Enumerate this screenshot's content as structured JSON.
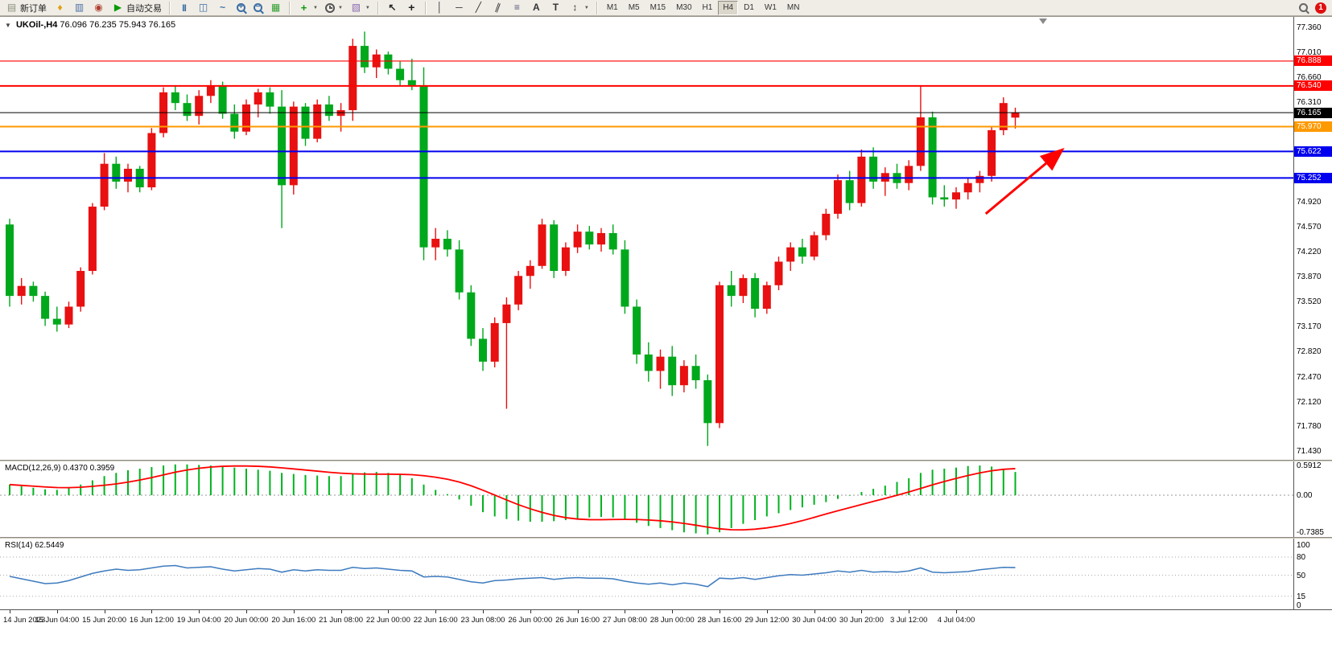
{
  "toolbar": {
    "new_order_label": "新订单",
    "autotrade_label": "自动交易",
    "timeframes": [
      "M1",
      "M5",
      "M15",
      "M30",
      "H1",
      "H4",
      "D1",
      "W1",
      "MN"
    ],
    "active_timeframe": "H4",
    "notification_count": "1"
  },
  "chart": {
    "symbol_period": "UKOil-,H4",
    "ohlc_line": "76.096 76.235 75.943 76.165"
  },
  "time_axis": [
    "14 Jun 2023",
    "15 Jun 04:00",
    "15 Jun 20:00",
    "16 Jun 12:00",
    "19 Jun 04:00",
    "20 Jun 00:00",
    "20 Jun 16:00",
    "21 Jun 08:00",
    "22 Jun 00:00",
    "22 Jun 16:00",
    "23 Jun 08:00",
    "26 Jun 00:00",
    "26 Jun 16:00",
    "27 Jun 08:00",
    "28 Jun 00:00",
    "28 Jun 16:00",
    "29 Jun 12:00",
    "30 Jun 04:00",
    "30 Jun 20:00",
    "3 Jul 12:00",
    "4 Jul 04:00"
  ],
  "chart_data": [
    {
      "type": "candlestick",
      "title": "UKOil-,H4",
      "ylim": [
        71.32,
        77.51
      ],
      "up_color": "#e81010",
      "down_color": "#00a81c",
      "y_ticks": [
        "77.360",
        "77.010",
        "76.660",
        "76.310",
        "74.920",
        "74.570",
        "74.220",
        "73.870",
        "73.520",
        "73.170",
        "72.820",
        "72.470",
        "72.120",
        "71.780",
        "71.430"
      ],
      "hlines": [
        {
          "price": 76.888,
          "label": "76.888",
          "color": "#ff0000",
          "width": 1.2
        },
        {
          "price": 76.54,
          "label": "76.540",
          "color": "#ff0000",
          "width": 2
        },
        {
          "price": 76.165,
          "label": "76.165",
          "color": "#000000",
          "width": 1
        },
        {
          "price": 75.97,
          "label": "75.970",
          "color": "#ff9900",
          "width": 2
        },
        {
          "price": 75.622,
          "label": "75.622",
          "color": "#0000ee",
          "width": 2
        },
        {
          "price": 75.252,
          "label": "75.252",
          "color": "#0000ee",
          "width": 2
        }
      ],
      "annotation_arrow": {
        "from_bar": 82.5,
        "from_price": 74.75,
        "to_bar": 89,
        "to_price": 75.65,
        "color": "#ff0000"
      },
      "ohlc": [
        [
          74.6,
          74.68,
          73.45,
          73.6
        ],
        [
          73.6,
          73.85,
          73.48,
          73.74
        ],
        [
          73.74,
          73.8,
          73.52,
          73.6
        ],
        [
          73.6,
          73.66,
          73.18,
          73.28
        ],
        [
          73.28,
          73.45,
          73.1,
          73.2
        ],
        [
          73.2,
          73.52,
          73.15,
          73.45
        ],
        [
          73.45,
          74.0,
          73.38,
          73.95
        ],
        [
          73.95,
          74.9,
          73.9,
          74.85
        ],
        [
          74.85,
          75.6,
          74.8,
          75.45
        ],
        [
          75.45,
          75.55,
          75.1,
          75.2
        ],
        [
          75.2,
          75.45,
          75.05,
          75.38
        ],
        [
          75.38,
          75.42,
          75.05,
          75.12
        ],
        [
          75.12,
          75.95,
          75.08,
          75.88
        ],
        [
          75.88,
          76.52,
          75.82,
          76.45
        ],
        [
          76.45,
          76.55,
          76.2,
          76.3
        ],
        [
          76.3,
          76.42,
          76.05,
          76.12
        ],
        [
          76.12,
          76.48,
          76.0,
          76.4
        ],
        [
          76.4,
          76.62,
          76.3,
          76.55
        ],
        [
          76.55,
          76.6,
          76.08,
          76.15
        ],
        [
          76.15,
          76.28,
          75.8,
          75.9
        ],
        [
          75.9,
          76.35,
          75.85,
          76.28
        ],
        [
          76.28,
          76.5,
          76.1,
          76.45
        ],
        [
          76.45,
          76.52,
          76.15,
          76.25
        ],
        [
          76.25,
          76.48,
          74.55,
          75.15
        ],
        [
          75.15,
          76.32,
          75.02,
          76.25
        ],
        [
          76.25,
          76.3,
          75.7,
          75.8
        ],
        [
          75.8,
          76.35,
          75.75,
          76.28
        ],
        [
          76.28,
          76.4,
          76.05,
          76.12
        ],
        [
          76.12,
          76.3,
          75.9,
          76.2
        ],
        [
          76.2,
          77.2,
          76.05,
          77.1
        ],
        [
          77.1,
          77.3,
          76.72,
          76.8
        ],
        [
          76.8,
          77.05,
          76.65,
          76.98
        ],
        [
          76.98,
          77.02,
          76.7,
          76.78
        ],
        [
          76.78,
          76.88,
          76.55,
          76.62
        ],
        [
          76.62,
          76.92,
          76.48,
          76.55
        ],
        [
          76.55,
          76.8,
          74.1,
          74.28
        ],
        [
          74.28,
          74.55,
          74.1,
          74.4
        ],
        [
          74.4,
          74.52,
          74.15,
          74.25
        ],
        [
          74.25,
          74.38,
          73.55,
          73.65
        ],
        [
          73.65,
          73.75,
          72.9,
          73.0
        ],
        [
          73.0,
          73.15,
          72.55,
          72.68
        ],
        [
          72.68,
          73.3,
          72.6,
          73.22
        ],
        [
          73.22,
          73.58,
          72.02,
          73.48
        ],
        [
          73.48,
          73.95,
          73.4,
          73.88
        ],
        [
          73.88,
          74.1,
          73.7,
          74.02
        ],
        [
          74.02,
          74.68,
          73.98,
          74.6
        ],
        [
          74.6,
          74.66,
          73.85,
          73.95
        ],
        [
          73.95,
          74.35,
          73.88,
          74.28
        ],
        [
          74.28,
          74.6,
          74.2,
          74.5
        ],
        [
          74.5,
          74.58,
          74.25,
          74.32
        ],
        [
          74.32,
          74.55,
          74.22,
          74.48
        ],
        [
          74.48,
          74.6,
          74.18,
          74.25
        ],
        [
          74.25,
          74.38,
          73.35,
          73.45
        ],
        [
          73.45,
          73.55,
          72.65,
          72.78
        ],
        [
          72.78,
          72.95,
          72.4,
          72.55
        ],
        [
          72.55,
          72.85,
          72.3,
          72.75
        ],
        [
          72.75,
          72.9,
          72.2,
          72.35
        ],
        [
          72.35,
          72.7,
          72.25,
          72.62
        ],
        [
          72.62,
          72.78,
          72.3,
          72.42
        ],
        [
          72.42,
          72.5,
          71.5,
          71.82
        ],
        [
          71.82,
          73.8,
          71.75,
          73.75
        ],
        [
          73.75,
          73.95,
          73.45,
          73.6
        ],
        [
          73.6,
          73.9,
          73.5,
          73.85
        ],
        [
          73.85,
          73.92,
          73.3,
          73.42
        ],
        [
          73.42,
          73.8,
          73.35,
          73.75
        ],
        [
          73.75,
          74.15,
          73.68,
          74.08
        ],
        [
          74.08,
          74.35,
          73.95,
          74.28
        ],
        [
          74.28,
          74.4,
          74.05,
          74.15
        ],
        [
          74.15,
          74.5,
          74.1,
          74.45
        ],
        [
          74.45,
          74.82,
          74.38,
          74.75
        ],
        [
          74.75,
          75.3,
          74.68,
          75.22
        ],
        [
          75.22,
          75.35,
          74.8,
          74.9
        ],
        [
          74.9,
          75.65,
          74.85,
          75.55
        ],
        [
          75.55,
          75.68,
          75.1,
          75.2
        ],
        [
          75.2,
          75.4,
          75.0,
          75.32
        ],
        [
          75.32,
          75.45,
          75.1,
          75.18
        ],
        [
          75.18,
          75.5,
          75.08,
          75.42
        ],
        [
          75.42,
          76.55,
          75.35,
          76.1
        ],
        [
          76.1,
          76.18,
          74.88,
          74.98
        ],
        [
          74.98,
          75.15,
          74.85,
          74.95
        ],
        [
          74.95,
          75.12,
          74.82,
          75.05
        ],
        [
          75.05,
          75.25,
          74.95,
          75.18
        ],
        [
          75.18,
          75.35,
          75.05,
          75.28
        ],
        [
          75.28,
          75.98,
          75.2,
          75.92
        ],
        [
          75.92,
          76.38,
          75.85,
          76.3
        ],
        [
          76.096,
          76.235,
          75.943,
          76.165
        ]
      ]
    },
    {
      "type": "bar",
      "title": "MACD(12,26,9)",
      "values_label": "0.4370 0.3959",
      "ylim": [
        -0.7385,
        0.5912
      ],
      "y_ticks": [
        "0.5912",
        "0.00",
        "-0.7385"
      ],
      "histogram_color": "#00b31e",
      "signal_color": "#ff0000",
      "values": [
        0.2,
        0.17,
        0.14,
        0.11,
        0.1,
        0.13,
        0.2,
        0.28,
        0.36,
        0.42,
        0.47,
        0.5,
        0.53,
        0.56,
        0.58,
        0.58,
        0.57,
        0.56,
        0.55,
        0.52,
        0.5,
        0.48,
        0.46,
        0.42,
        0.4,
        0.38,
        0.37,
        0.36,
        0.36,
        0.4,
        0.43,
        0.44,
        0.42,
        0.38,
        0.32,
        0.2,
        0.1,
        0.02,
        -0.08,
        -0.2,
        -0.32,
        -0.4,
        -0.45,
        -0.48,
        -0.5,
        -0.5,
        -0.49,
        -0.47,
        -0.44,
        -0.42,
        -0.41,
        -0.42,
        -0.46,
        -0.52,
        -0.58,
        -0.62,
        -0.66,
        -0.7,
        -0.72,
        -0.74,
        -0.7,
        -0.62,
        -0.54,
        -0.47,
        -0.4,
        -0.34,
        -0.28,
        -0.23,
        -0.18,
        -0.13,
        -0.07,
        -0.01,
        0.06,
        0.12,
        0.18,
        0.25,
        0.32,
        0.42,
        0.48,
        0.5,
        0.52,
        0.55,
        0.56,
        0.54,
        0.5,
        0.437
      ]
    },
    {
      "type": "line",
      "title": "RSI(14)",
      "values_label": "62.5449",
      "ylim": [
        0,
        100
      ],
      "y_ticks": [
        "100",
        "80",
        "50",
        "15",
        "0"
      ],
      "levels": [
        80,
        50,
        15
      ],
      "line_color": "#3e7bbe",
      "values": [
        48,
        44,
        40,
        36,
        37,
        41,
        47,
        53,
        57,
        60,
        58,
        59,
        62,
        65,
        66,
        62,
        63,
        64,
        60,
        57,
        59,
        61,
        60,
        55,
        59,
        57,
        59,
        58,
        58,
        63,
        61,
        62,
        60,
        58,
        57,
        47,
        48,
        47,
        43,
        39,
        37,
        41,
        42,
        44,
        45,
        46,
        43,
        45,
        46,
        45,
        45,
        44,
        40,
        37,
        35,
        37,
        34,
        37,
        35,
        31,
        45,
        44,
        46,
        43,
        46,
        49,
        51,
        50,
        52,
        54,
        57,
        55,
        58,
        55,
        56,
        55,
        57,
        62,
        55,
        54,
        55,
        56,
        59,
        61,
        63,
        62.5449
      ]
    }
  ]
}
